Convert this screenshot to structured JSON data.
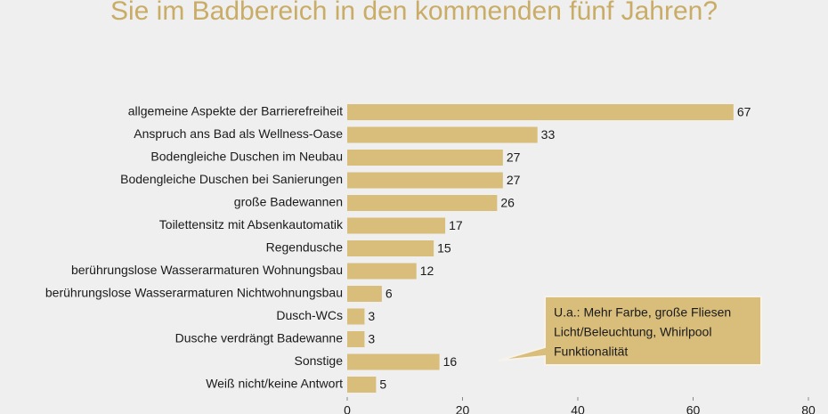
{
  "chart_data": {
    "type": "bar",
    "orientation": "horizontal",
    "title": "Sie im Badbereich in den kommenden fünf Jahren?",
    "categories": [
      "allgemeine Aspekte der Barrierefreiheit",
      "Anspruch ans Bad als Wellness-Oase",
      "Bodengleiche Duschen im Neubau",
      "Bodengleiche Duschen bei Sanierungen",
      "große Badewannen",
      "Toilettensitz mit Absenkautomatik",
      "Regendusche",
      "berührungslose Wasserarmaturen Wohnungsbau",
      "berührungslose Wasserarmaturen Nichtwohnungsbau",
      "Dusch-WCs",
      "Dusche verdrängt Badewanne",
      "Sonstige",
      "Weiß nicht/keine Antwort"
    ],
    "values": [
      67,
      33,
      27,
      27,
      26,
      17,
      15,
      12,
      6,
      3,
      3,
      16,
      5
    ],
    "color": "#d8bd7b",
    "xlim": [
      0,
      80
    ],
    "xticks": [
      0,
      20,
      40,
      60,
      80
    ],
    "annotation": [
      "U.a.: Mehr Farbe, große Fliesen",
      "Licht/Beleuchtung, Whirlpool",
      "Funktionalität"
    ]
  }
}
